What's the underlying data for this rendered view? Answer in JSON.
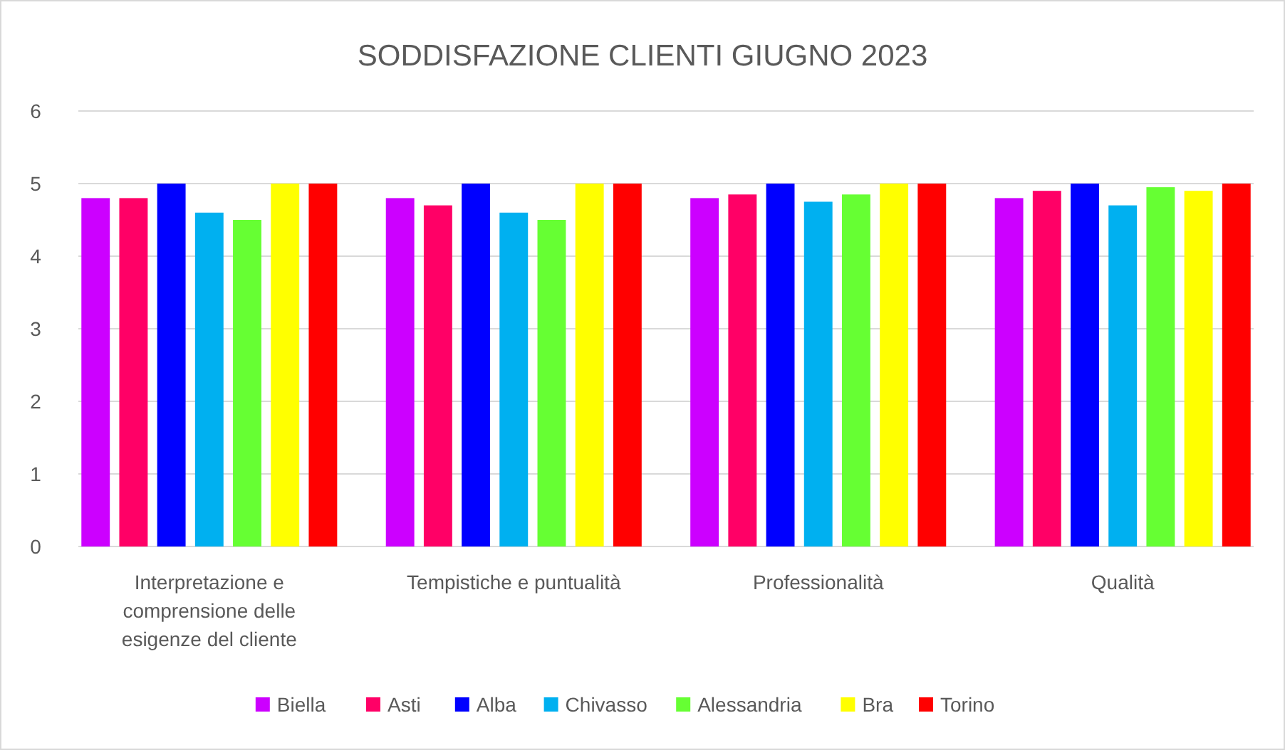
{
  "chart_data": {
    "type": "bar",
    "title": "SODDISFAZIONE CLIENTI GIUGNO 2023",
    "categories": [
      "Interpretazione e comprensione delle esigenze del cliente",
      "Tempistiche e puntualità",
      "Professionalità",
      "Qualità"
    ],
    "series": [
      {
        "name": "Biella",
        "color": "#cc00ff",
        "values": [
          4.8,
          4.8,
          4.8,
          4.8
        ]
      },
      {
        "name": "Asti",
        "color": "#ff0066",
        "values": [
          4.8,
          4.7,
          4.85,
          4.9
        ]
      },
      {
        "name": "Alba",
        "color": "#0000ff",
        "values": [
          5,
          5,
          5,
          5
        ]
      },
      {
        "name": "Chivasso",
        "color": "#00b0f0",
        "values": [
          4.6,
          4.6,
          4.75,
          4.7
        ]
      },
      {
        "name": "Alessandria",
        "color": "#66ff33",
        "values": [
          4.5,
          4.5,
          4.85,
          4.95
        ]
      },
      {
        "name": "Bra",
        "color": "#ffff00",
        "values": [
          5,
          5,
          5,
          4.9
        ]
      },
      {
        "name": "Torino",
        "color": "#ff0000",
        "values": [
          5,
          5,
          5,
          5
        ]
      }
    ],
    "ylim": [
      0,
      6
    ],
    "yticks": [
      0,
      1,
      2,
      3,
      4,
      5,
      6
    ],
    "grid": "y",
    "legend": "bottom"
  }
}
